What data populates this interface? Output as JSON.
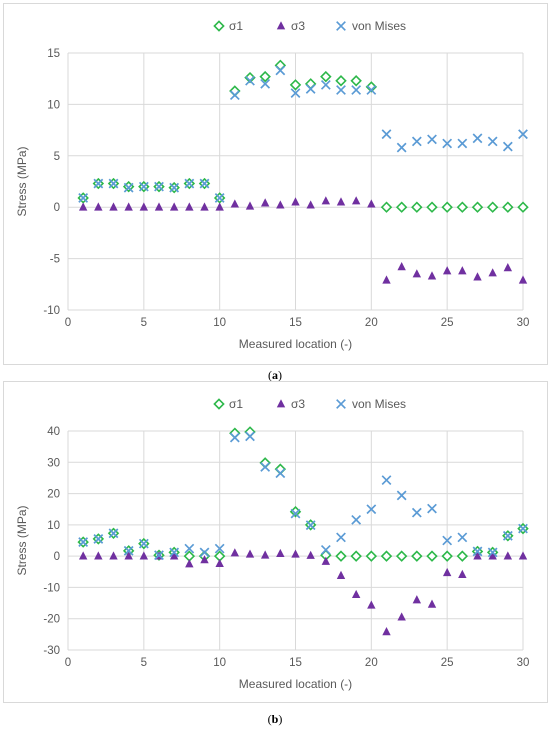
{
  "colors": {
    "sigma1": "#2db84a",
    "sigma3": "#7030a0",
    "vonmises": "#5b9bd5",
    "grid": "#d9d9d9"
  },
  "captions": [
    "a",
    "b"
  ],
  "chart_data": [
    {
      "type": "scatter",
      "xlabel": "Measured location (-)",
      "ylabel": "Stress  (MPa)",
      "xlim": [
        0,
        30
      ],
      "ylim": [
        -10,
        15
      ],
      "xticks": [
        0,
        5,
        10,
        15,
        20,
        25,
        30
      ],
      "yticks": [
        -10,
        -5,
        0,
        5,
        10,
        15
      ],
      "grid": true,
      "legend_position": "top",
      "x": [
        1,
        2,
        3,
        4,
        5,
        6,
        7,
        8,
        9,
        10,
        11,
        12,
        13,
        14,
        15,
        16,
        17,
        18,
        19,
        20,
        21,
        22,
        23,
        24,
        25,
        26,
        27,
        28,
        29,
        30
      ],
      "series": [
        {
          "name": "σ1",
          "marker": "diamond",
          "values": [
            0.9,
            2.3,
            2.3,
            2.0,
            2.0,
            2.0,
            1.9,
            2.3,
            2.3,
            0.9,
            11.3,
            12.6,
            12.7,
            13.8,
            11.9,
            12.0,
            12.7,
            12.3,
            12.3,
            11.7,
            0,
            0,
            0,
            0,
            0,
            0,
            0,
            0,
            0,
            0
          ]
        },
        {
          "name": "σ3",
          "marker": "triangle",
          "values": [
            0,
            0,
            0,
            0,
            0,
            0,
            0,
            0,
            0,
            0,
            0.3,
            0.1,
            0.4,
            0.2,
            0.5,
            0.2,
            0.6,
            0.5,
            0.6,
            0.3,
            -7.1,
            -5.8,
            -6.5,
            -6.7,
            -6.2,
            -6.2,
            -6.8,
            -6.4,
            -5.9,
            -7.1
          ]
        },
        {
          "name": "von Mises",
          "marker": "x",
          "values": [
            0.9,
            2.3,
            2.3,
            1.9,
            2.0,
            2.0,
            1.9,
            2.3,
            2.3,
            0.9,
            10.9,
            12.3,
            12.0,
            13.3,
            11.1,
            11.5,
            11.9,
            11.4,
            11.4,
            11.4,
            7.1,
            5.8,
            6.4,
            6.6,
            6.2,
            6.2,
            6.7,
            6.4,
            5.9,
            7.1
          ]
        }
      ]
    },
    {
      "type": "scatter",
      "xlabel": "Measured location (-)",
      "ylabel": "Stress  (MPa)",
      "xlim": [
        0,
        30
      ],
      "ylim": [
        -30,
        40
      ],
      "xticks": [
        0,
        5,
        10,
        15,
        20,
        25,
        30
      ],
      "yticks": [
        -30,
        -20,
        -10,
        0,
        10,
        20,
        30,
        40
      ],
      "grid": true,
      "legend_position": "top",
      "x": [
        1,
        2,
        3,
        4,
        5,
        6,
        7,
        8,
        9,
        10,
        11,
        12,
        13,
        14,
        15,
        16,
        17,
        18,
        19,
        20,
        21,
        22,
        23,
        24,
        25,
        26,
        27,
        28,
        29,
        30
      ],
      "series": [
        {
          "name": "σ1",
          "marker": "diamond",
          "values": [
            4.5,
            5.5,
            7.3,
            1.7,
            4.0,
            0.3,
            1.2,
            0,
            0,
            0,
            39.3,
            39.7,
            29.8,
            27.8,
            14.2,
            10.0,
            0.3,
            0,
            0,
            0,
            0,
            0,
            0,
            0,
            0,
            0,
            1.5,
            1.2,
            6.5,
            8.8
          ]
        },
        {
          "name": "σ3",
          "marker": "triangle",
          "values": [
            0,
            0,
            0,
            0,
            0,
            0,
            0,
            -2.5,
            -1.2,
            -2.4,
            1.0,
            0.6,
            0.3,
            0.8,
            0.6,
            0.2,
            -1.7,
            -6.2,
            -12.3,
            -15.7,
            -24.2,
            -19.5,
            -14.0,
            -15.4,
            -5.3,
            -5.9,
            0,
            0,
            0,
            0
          ]
        },
        {
          "name": "von Mises",
          "marker": "x",
          "values": [
            4.5,
            5.5,
            7.3,
            1.7,
            4.0,
            0.3,
            1.2,
            2.4,
            1.2,
            2.4,
            37.9,
            38.3,
            28.5,
            26.5,
            13.6,
            9.9,
            2.0,
            6.0,
            11.6,
            15.0,
            24.3,
            19.4,
            13.9,
            15.2,
            5.0,
            6.0,
            1.5,
            1.2,
            6.5,
            8.8
          ]
        }
      ]
    }
  ]
}
